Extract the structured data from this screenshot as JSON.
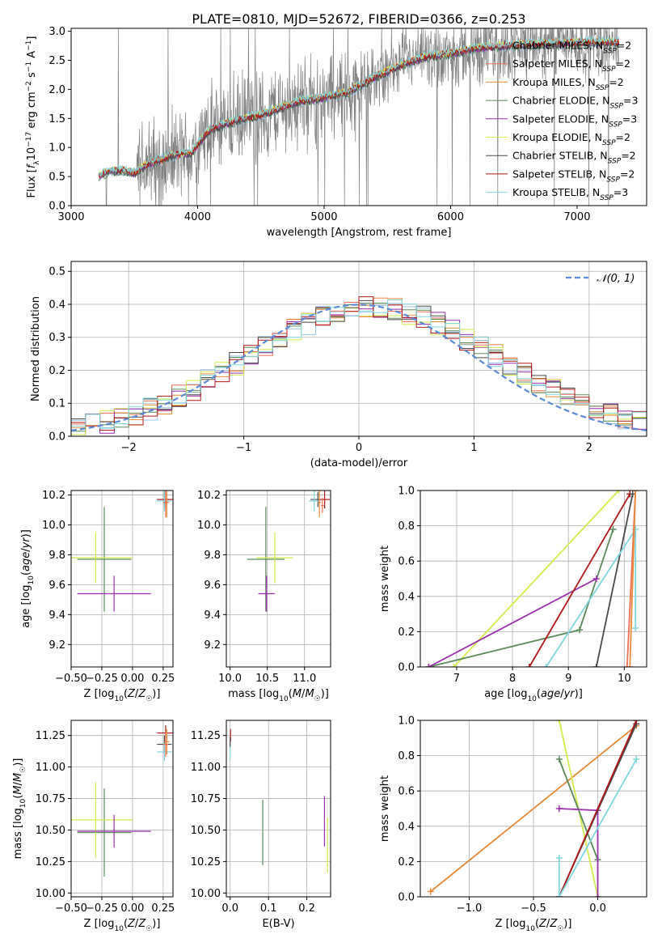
{
  "figure_title": "PLATE=0810, MJD=52672, FIBERID=0366, z=0.253",
  "fits": [
    {
      "name": "Chabrier MILES, N",
      "nssp": "=2",
      "color": "#9bc4e8"
    },
    {
      "name": "Salpeter MILES, N",
      "nssp": "=2",
      "color": "#ee7155"
    },
    {
      "name": "Kroupa MILES, N",
      "nssp": "=2",
      "color": "#e88b3a"
    },
    {
      "name": "Chabrier ELODIE, N",
      "nssp": "=3",
      "color": "#5b8a5b"
    },
    {
      "name": "Salpeter ELODIE, N",
      "nssp": "=3",
      "color": "#9b2fae"
    },
    {
      "name": "Kroupa ELODIE, N",
      "nssp": "=2",
      "color": "#d4ea4e"
    },
    {
      "name": "Chabrier STELIB, N",
      "nssp": "=2",
      "color": "#4a4a4a"
    },
    {
      "name": "Salpeter STELIB, N",
      "nssp": "=2",
      "color": "#b01818"
    },
    {
      "name": "Kroupa STELIB, N",
      "nssp": "=3",
      "color": "#7fd6de"
    }
  ],
  "nssp_sub": "SSP",
  "data_color": "#808080",
  "chart_data": [
    {
      "id": "spectrum",
      "type": "line",
      "xlabel": "wavelength [Angstrom, rest frame]",
      "ylabel_parts": [
        "Flux [",
        "f",
        "λ",
        "10",
        "−17",
        " erg cm",
        "−2",
        " s",
        "−1",
        " A",
        "−1",
        "]"
      ],
      "xlim": [
        3000,
        7550
      ],
      "ylim": [
        0,
        3.05
      ],
      "xticks": [
        3000,
        4000,
        5000,
        6000,
        7000
      ],
      "yticks": [
        0.0,
        0.5,
        1.0,
        1.5,
        2.0,
        2.5,
        3.0
      ],
      "grid": false,
      "legend_loc": "right",
      "continuum": [
        [
          3220,
          0.5
        ],
        [
          3300,
          0.58
        ],
        [
          3400,
          0.6
        ],
        [
          3500,
          0.55
        ],
        [
          3600,
          0.7
        ],
        [
          3800,
          0.85
        ],
        [
          3950,
          0.9
        ],
        [
          4100,
          1.3
        ],
        [
          4300,
          1.45
        ],
        [
          4500,
          1.55
        ],
        [
          4800,
          1.78
        ],
        [
          5000,
          1.85
        ],
        [
          5200,
          1.95
        ],
        [
          5400,
          2.2
        ],
        [
          5600,
          2.4
        ],
        [
          5800,
          2.55
        ],
        [
          6000,
          2.6
        ],
        [
          6200,
          2.7
        ],
        [
          6500,
          2.75
        ],
        [
          6800,
          2.78
        ],
        [
          7100,
          2.8
        ],
        [
          7300,
          2.8
        ]
      ]
    },
    {
      "id": "residuals",
      "type": "histogram",
      "xlabel": "(data-model)/error",
      "ylabel": "Normed distribution",
      "xlim": [
        -2.5,
        2.5
      ],
      "ylim": [
        0,
        0.53
      ],
      "xticks": [
        -2,
        -1,
        0,
        1,
        2
      ],
      "yticks": [
        0.0,
        0.1,
        0.2,
        0.3,
        0.4,
        0.5
      ],
      "grid": true,
      "bin_width": 0.125,
      "gaussian_label": "𝒩(0, 1)",
      "gaussian_color": "#5b8bd8",
      "legend_loc": "top-right"
    },
    {
      "id": "age-vs-z",
      "type": "scatter",
      "xlabel": "Z [log10(Z/Z☉)]",
      "ylabel": "age [log10(age/yr)]",
      "xlim": [
        -0.5,
        0.33
      ],
      "ylim": [
        9.05,
        10.23
      ],
      "xticks": [
        -0.5,
        -0.25,
        0.0,
        0.25
      ],
      "xticklabels": [
        "−0.50",
        "−0.25",
        "0.00",
        "0.25"
      ],
      "yticks": [
        9.2,
        9.4,
        9.6,
        9.8,
        10.0,
        10.2
      ],
      "grid": true,
      "points": [
        {
          "fit": 3,
          "x": -0.23,
          "y": 9.77,
          "xerr": 0.22,
          "yerr": 0.35
        },
        {
          "fit": 5,
          "x": -0.3,
          "y": 9.78,
          "xerr": 0.3,
          "yerr": 0.17
        },
        {
          "fit": 4,
          "x": -0.15,
          "y": 9.54,
          "xerr": 0.3,
          "yerr": 0.12
        },
        {
          "fit": 6,
          "x": 0.26,
          "y": 10.17,
          "xerr": 0.06,
          "yerr": 0.05
        },
        {
          "fit": 7,
          "x": 0.27,
          "y": 10.17,
          "xerr": 0.07,
          "yerr": 0.06
        },
        {
          "fit": 8,
          "x": 0.26,
          "y": 10.16,
          "xerr": 0.06,
          "yerr": 0.07
        },
        {
          "fit": 2,
          "x": 0.28,
          "y": 10.15,
          "xerr": 0.02,
          "yerr": 0.1
        },
        {
          "fit": 1,
          "x": 0.27,
          "y": 10.15,
          "xerr": 0.02,
          "yerr": 0.1
        }
      ]
    },
    {
      "id": "age-vs-mass",
      "type": "scatter",
      "xlabel": "mass [log10(M/M☉)]",
      "ylabel": "",
      "xlim": [
        9.95,
        11.35
      ],
      "ylim": [
        9.05,
        10.23
      ],
      "xticks": [
        10.0,
        10.5,
        11.0
      ],
      "xticklabels": [
        "10.0",
        "10.5",
        "11.0"
      ],
      "yticks": [
        9.2,
        9.4,
        9.6,
        9.8,
        10.0,
        10.2
      ],
      "grid": true,
      "points": [
        {
          "fit": 3,
          "x": 10.48,
          "y": 9.77,
          "xerr": 0.25,
          "yerr": 0.35
        },
        {
          "fit": 5,
          "x": 10.6,
          "y": 9.78,
          "xerr": 0.25,
          "yerr": 0.17
        },
        {
          "fit": 4,
          "x": 10.49,
          "y": 9.54,
          "xerr": 0.11,
          "yerr": 0.12
        },
        {
          "fit": 6,
          "x": 11.18,
          "y": 10.17,
          "xerr": 0.1,
          "yerr": 0.05
        },
        {
          "fit": 7,
          "x": 11.27,
          "y": 10.17,
          "xerr": 0.07,
          "yerr": 0.06
        },
        {
          "fit": 8,
          "x": 11.13,
          "y": 10.16,
          "xerr": 0.07,
          "yerr": 0.07
        },
        {
          "fit": 2,
          "x": 11.2,
          "y": 10.15,
          "xerr": 0.02,
          "yerr": 0.1
        },
        {
          "fit": 1,
          "x": 11.24,
          "y": 10.13,
          "xerr": 0.02,
          "yerr": 0.05
        }
      ]
    },
    {
      "id": "weight-vs-age",
      "type": "line",
      "xlabel": "age [log10(age/yr)]",
      "ylabel": "mass weight",
      "xlim": [
        6.35,
        10.4
      ],
      "ylim": [
        0,
        1
      ],
      "xticks": [
        7,
        8,
        9,
        10
      ],
      "yticks": [
        0.0,
        0.2,
        0.4,
        0.6,
        0.8,
        1.0
      ],
      "grid": true,
      "series": [
        {
          "fit": 5,
          "x": [
            6.95,
            9.9
          ],
          "y": [
            0.0,
            1.0
          ]
        },
        {
          "fit": 3,
          "x": [
            6.5,
            9.2,
            9.8
          ],
          "y": [
            0.0,
            0.21,
            0.78
          ]
        },
        {
          "fit": 4,
          "x": [
            6.5,
            9.5
          ],
          "y": [
            0.0,
            0.5
          ]
        },
        {
          "fit": 7,
          "x": [
            8.3,
            10.1
          ],
          "y": [
            0.0,
            0.98
          ]
        },
        {
          "fit": 6,
          "x": [
            9.5,
            10.15
          ],
          "y": [
            0.0,
            0.98
          ]
        },
        {
          "fit": 8,
          "x": [
            8.6,
            10.2,
            10.2
          ],
          "y": [
            0.0,
            0.78,
            0.22
          ]
        },
        {
          "fit": 1,
          "x": [
            10.05,
            10.2
          ],
          "y": [
            0.0,
            1.0
          ]
        },
        {
          "fit": 2,
          "x": [
            10.1,
            10.2
          ],
          "y": [
            0.0,
            1.0
          ]
        }
      ]
    },
    {
      "id": "mass-vs-z",
      "type": "scatter",
      "xlabel": "Z [log10(Z/Z☉)]",
      "ylabel": "mass [log10(M/M☉)]",
      "xlim": [
        -0.5,
        0.33
      ],
      "ylim": [
        9.97,
        11.37
      ],
      "xticks": [
        -0.5,
        -0.25,
        0.0,
        0.25
      ],
      "xticklabels": [
        "−0.50",
        "−0.25",
        "0.00",
        "0.25"
      ],
      "yticks": [
        10.0,
        10.25,
        10.5,
        10.75,
        11.0,
        11.25
      ],
      "grid": true,
      "points": [
        {
          "fit": 3,
          "x": -0.23,
          "y": 10.48,
          "xerr": 0.22,
          "yerr": 0.35
        },
        {
          "fit": 5,
          "x": -0.3,
          "y": 10.58,
          "xerr": 0.3,
          "yerr": 0.3
        },
        {
          "fit": 4,
          "x": -0.15,
          "y": 10.49,
          "xerr": 0.3,
          "yerr": 0.13
        },
        {
          "fit": 6,
          "x": 0.26,
          "y": 11.18,
          "xerr": 0.06,
          "yerr": 0.07
        },
        {
          "fit": 7,
          "x": 0.27,
          "y": 11.27,
          "xerr": 0.07,
          "yerr": 0.06
        },
        {
          "fit": 8,
          "x": 0.26,
          "y": 11.12,
          "xerr": 0.06,
          "yerr": 0.07
        },
        {
          "fit": 2,
          "x": 0.28,
          "y": 11.2,
          "xerr": 0.02,
          "yerr": 0.1
        },
        {
          "fit": 1,
          "x": 0.27,
          "y": 11.18,
          "xerr": 0.02,
          "yerr": 0.1
        }
      ]
    },
    {
      "id": "mass-vs-ebv",
      "type": "scatter",
      "xlabel": "E(B-V)",
      "ylabel": "",
      "xlim": [
        -0.01,
        0.262
      ],
      "ylim": [
        9.97,
        11.37
      ],
      "xticks": [
        0.0,
        0.1,
        0.2
      ],
      "xticklabels": [
        "0.0",
        "0.1",
        "0.2"
      ],
      "yticks": [
        10.0,
        10.25,
        10.5,
        10.75,
        11.0,
        11.25
      ],
      "grid": true,
      "points": [
        {
          "fit": 3,
          "x": 0.085,
          "y": 10.48,
          "xerr": 0.0,
          "yerr": 0.26
        },
        {
          "fit": 4,
          "x": 0.246,
          "y": 10.57,
          "xerr": 0.0,
          "yerr": 0.2
        },
        {
          "fit": 5,
          "x": 0.254,
          "y": 10.38,
          "xerr": 0.0,
          "yerr": 0.22
        },
        {
          "fit": 7,
          "x": 0.001,
          "y": 11.25,
          "xerr": 0.0,
          "yerr": 0.05
        },
        {
          "fit": 8,
          "x": 0.0,
          "y": 11.12,
          "xerr": 0.0,
          "yerr": 0.06
        },
        {
          "fit": 6,
          "x": 0.0,
          "y": 11.2,
          "xerr": 0.0,
          "yerr": 0.04
        }
      ]
    },
    {
      "id": "weight-vs-z",
      "type": "line",
      "xlabel": "Z [log10(Z/Z☉)]",
      "ylabel": "mass weight",
      "xlim": [
        -1.38,
        0.38
      ],
      "ylim": [
        0,
        1
      ],
      "xticks": [
        -1.0,
        -0.5,
        0.0
      ],
      "xticklabels": [
        "−1.0",
        "−0.5",
        "0.0"
      ],
      "yticks": [
        0.0,
        0.2,
        0.4,
        0.6,
        0.8,
        1.0
      ],
      "grid": true,
      "series": [
        {
          "fit": 2,
          "x": [
            -1.3,
            0.3
          ],
          "y": [
            0.03,
            0.97
          ]
        },
        {
          "fit": 5,
          "x": [
            -0.3,
            0.0
          ],
          "y": [
            1.0,
            0.0
          ]
        },
        {
          "fit": 3,
          "x": [
            -0.3,
            0.0
          ],
          "y": [
            0.78,
            0.21
          ]
        },
        {
          "fit": 4,
          "x": [
            -0.3,
            0.0,
            0.0
          ],
          "y": [
            0.5,
            0.49,
            0.0
          ]
        },
        {
          "fit": 6,
          "x": [
            -0.3,
            0.3
          ],
          "y": [
            0.0,
            0.98
          ]
        },
        {
          "fit": 7,
          "x": [
            -0.3,
            0.3
          ],
          "y": [
            0.0,
            1.0
          ]
        },
        {
          "fit": 8,
          "x": [
            -0.3,
            -0.3,
            0.3
          ],
          "y": [
            0.22,
            0.0,
            0.78
          ]
        }
      ]
    }
  ]
}
